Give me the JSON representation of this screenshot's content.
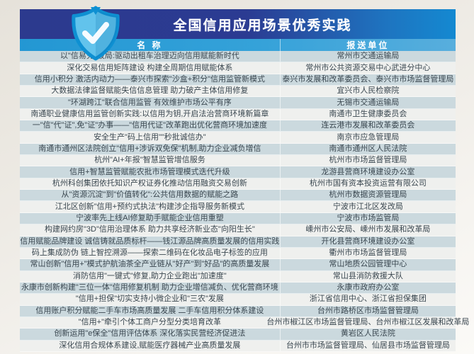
{
  "header": {
    "title": "全国信用应用场景优秀实践",
    "shield_icon": "shield-check-icon"
  },
  "table": {
    "columns": {
      "name": "名 称",
      "unit": "报送单位"
    },
    "rows": [
      {
        "name": "以\"信易充\"破局:驱动出租车治理迈向信用赋能新时代",
        "unit": "常州市交通运输局"
      },
      {
        "name": "深化交易信用矩阵建设 构建全周期信用赋能体系",
        "unit": "常州市公共资源交易中心武进分中心"
      },
      {
        "name": "信用小积分 激活内动力——泰兴市探索\"沙盒+积分\"信用监管新模式",
        "unit": "泰兴市发展和改革委员会、泰兴市市场监督管理局"
      },
      {
        "name": "大数据法律监督赋能失信信息管理 助力破产主体信用修复",
        "unit": "宜兴市人民检察院"
      },
      {
        "name": "\"环湖跨江\"联合信用监管 有效维护市场公平有序",
        "unit": "无锡市交通运输局"
      },
      {
        "name": "南通职业健康信用监管创新实践:以信用为钥,开启法治营商环境新篇章",
        "unit": "南通市卫生健康委员会"
      },
      {
        "name": "一\"信\"代\"证\",免\"证\"办事——\"信用代证\"改革跑出优化营商环境加速度",
        "unit": "连云港市发展和改革委员会"
      },
      {
        "name": "安全生产\"码上信用\"\"秒批诚信办\"",
        "unit": "南京市应急管理局"
      },
      {
        "name": "南通市通州区法院创立\"信用+涉诉双免保\"机制,助力企业减负增信",
        "unit": "南通市通州区人民法院"
      },
      {
        "name": "杭州\"AI+年报\"智慧监管增信服务",
        "unit": "杭州市市场监督管理局"
      },
      {
        "name": "信用+智慧监管赋能农批市场管理模式迭代升级",
        "unit": "龙游县营商环境建设办公室"
      },
      {
        "name": "杭州科创集团依托知识产权证券化推动信用融资交易创新",
        "unit": "杭州市国有资本投资运营有限公司"
      },
      {
        "name": "从\"资源沉淀\"到\"价值转化\":公共信用数据的赋能之路",
        "unit": "杭州市数据资源管理局"
      },
      {
        "name": "江北区创新\"信用+预约式执法\"构建涉企指导服务新模式",
        "unit": "宁波市江北区发改局"
      },
      {
        "name": "宁波率先上线AI修复助手赋能企业信用重塑",
        "unit": "宁波市市场监管局"
      },
      {
        "name": "构建网约房\"3D\"信用治理体系 助力共享经济新业态\"向阳生长\"",
        "unit": "嵊州市公安局、嵊州市发展和改革局"
      },
      {
        "name": "信用赋能品牌建设 诚信铸就品质标杆——钱江源品牌高质量发展的信用实践",
        "unit": "开化县营商环境建设办公室"
      },
      {
        "name": "码上集成防伪 链上智控溯源——探索二维码在化妆品电子标签的应用",
        "unit": "衢州市市场监督管理局"
      },
      {
        "name": "常山创新\"信用+\"模式护航油茶全产业链从\"好产\"到\"好品\"的高质量发展",
        "unit": "常山地质公园管理中心"
      },
      {
        "name": "消防信用\"一键式\"修复,助力企业跑出\"加速度\"",
        "unit": "常山县消防救援大队"
      },
      {
        "name": "永康市创新构建\"三位一体\"信用修复机制 助力企业增信减负、优化营商环境",
        "unit": "永康市政府办公室"
      },
      {
        "name": "\"信用+担保\"切实支持小微企业和\"三农\"发展",
        "unit": "浙江省信用中心、浙江省担保集团"
      },
      {
        "name": "信用账户积分赋能二手车市场高质量发展 二手车信用积分体系建设",
        "unit": "台州市路桥区市场监督管理局"
      },
      {
        "name": "\"信用+\"牵引个体工商户分型分类培育改革",
        "unit": "台州市椒江区市场监督管理局、台州市椒江区发展和改革局"
      },
      {
        "name": "创新运用\"e保全\"信用评估体系 深化落实民营经济促进法",
        "unit": "黄岩区人民法院"
      },
      {
        "name": "深化信用合规体系建设,赋能医疗器械产业高质量发展",
        "unit": "台州市市场监督管理局、仙居县市场监督管理局"
      }
    ]
  },
  "colors": {
    "title_band_left": "#2c3a8e",
    "title_band_right": "#1489d1",
    "column_header_band": "#35a2d9",
    "row_odd": "#cbd9de",
    "row_even": "#eff0ee",
    "row_text": "#3a4750",
    "shield_fill": "#62c3ec",
    "shield_border": "#0e90d2"
  }
}
